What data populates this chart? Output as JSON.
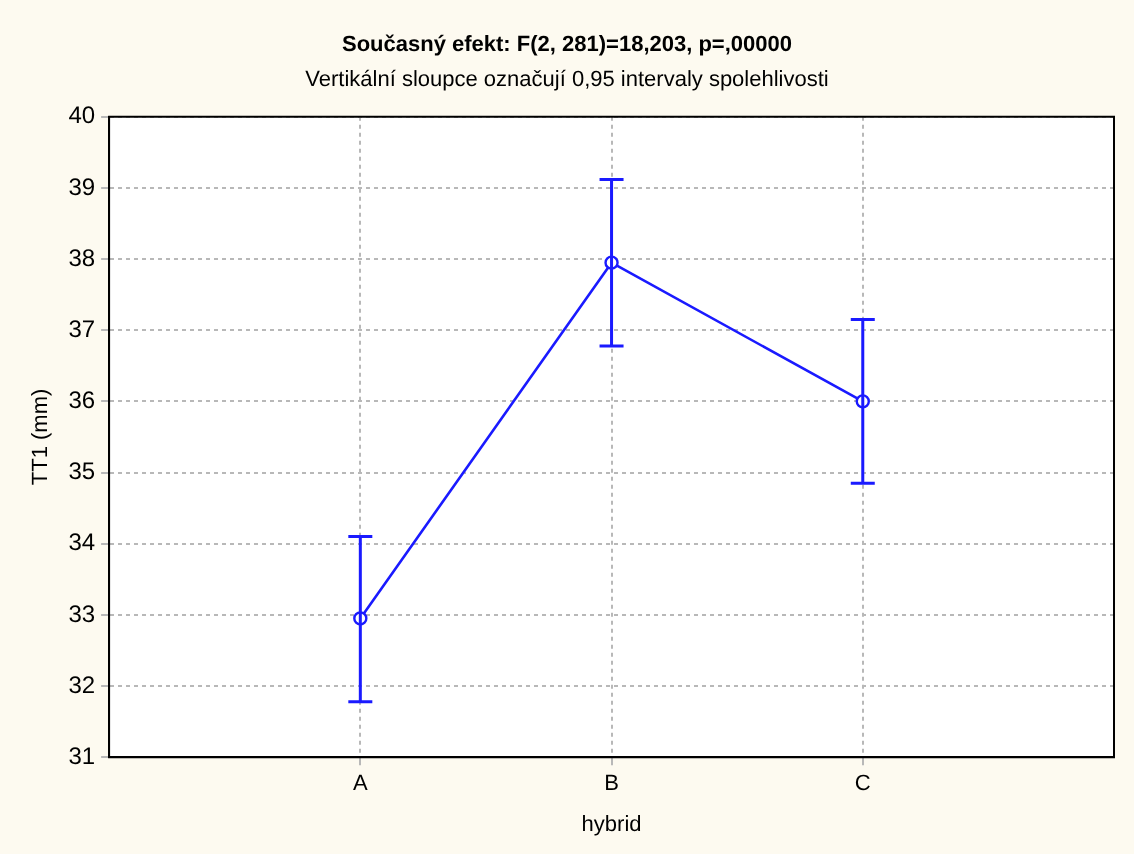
{
  "chart_data": {
    "type": "line",
    "title": "Současný efekt: F(2, 281)=18,203, p=,00000",
    "subtitle": "Vertikální sloupce označují 0,95 intervaly spolehlivosti",
    "xlabel": "hybrid",
    "ylabel": "TT1 (mm)",
    "categories": [
      "A",
      "B",
      "C"
    ],
    "series": [
      {
        "color": "#1a1aff",
        "values": [
          32.95,
          37.95,
          36.0
        ],
        "errors": [
          [
            31.78,
            34.1
          ],
          [
            36.78,
            39.12
          ],
          [
            34.85,
            37.15
          ]
        ]
      }
    ],
    "ylim": [
      31,
      40
    ],
    "yticks": [
      31,
      32,
      33,
      34,
      35,
      36,
      37,
      38,
      39,
      40
    ],
    "grid": true,
    "legend": false,
    "marker": "circle",
    "line_style": "solid"
  }
}
